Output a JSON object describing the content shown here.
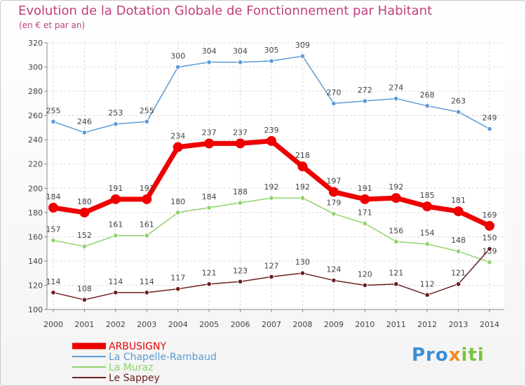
{
  "title": "Evolution de la Dotation Globale de Fonctionnement par Habitant",
  "subtitle": "(en € et par an)",
  "logo": {
    "part1": "Pro",
    "part2": "x",
    "part3": "iti"
  },
  "chart_data": {
    "type": "line",
    "x": [
      2000,
      2001,
      2002,
      2003,
      2004,
      2005,
      2006,
      2007,
      2008,
      2009,
      2010,
      2011,
      2012,
      2013,
      2014
    ],
    "ylim": [
      100,
      320
    ],
    "yticks": [
      100,
      120,
      140,
      160,
      180,
      200,
      220,
      240,
      260,
      280,
      300,
      320
    ],
    "grid": true,
    "legend_position": "bottom-left",
    "series": [
      {
        "name": "ARBUSIGNY",
        "color": "#ee0000",
        "emphasis": true,
        "values": [
          184,
          180,
          191,
          191,
          234,
          237,
          237,
          239,
          218,
          197,
          191,
          192,
          185,
          181,
          169
        ],
        "labels": [
          "184",
          "180",
          "191",
          "191",
          "234",
          "237",
          "237",
          "239",
          "218",
          "197",
          "191",
          "192",
          "185",
          "181",
          "169"
        ]
      },
      {
        "name": "La Chapelle-Rambaud",
        "color": "#5b9bd5",
        "emphasis": false,
        "values": [
          255,
          246,
          253,
          255,
          300,
          304,
          304,
          305,
          309,
          270,
          272,
          274,
          268,
          263,
          249
        ],
        "labels": [
          "255",
          "246",
          "253",
          "255",
          "300",
          "304",
          "304",
          "305",
          "309",
          "270",
          "272",
          "274",
          "268",
          "263",
          "249"
        ]
      },
      {
        "name": "La Muraz",
        "color": "#8fd36a",
        "emphasis": false,
        "values": [
          157,
          152,
          161,
          161,
          180,
          184,
          188,
          192,
          192,
          179,
          171,
          156,
          154,
          148,
          139
        ],
        "labels": [
          "157",
          "152",
          "161",
          "161",
          "180",
          "184",
          "188",
          "192",
          "192",
          "179",
          "171",
          "156",
          "154",
          "148",
          "139"
        ]
      },
      {
        "name": "Le Sappey",
        "color": "#6b1f1f",
        "emphasis": false,
        "values": [
          114,
          108,
          114,
          114,
          117,
          121,
          123,
          127,
          130,
          124,
          120,
          121,
          112,
          121,
          150
        ],
        "labels": [
          "114",
          "108",
          "114",
          "114",
          "117",
          "121",
          "123",
          "127",
          "130",
          "124",
          "120",
          "121",
          "112",
          "121",
          "150"
        ]
      }
    ]
  }
}
